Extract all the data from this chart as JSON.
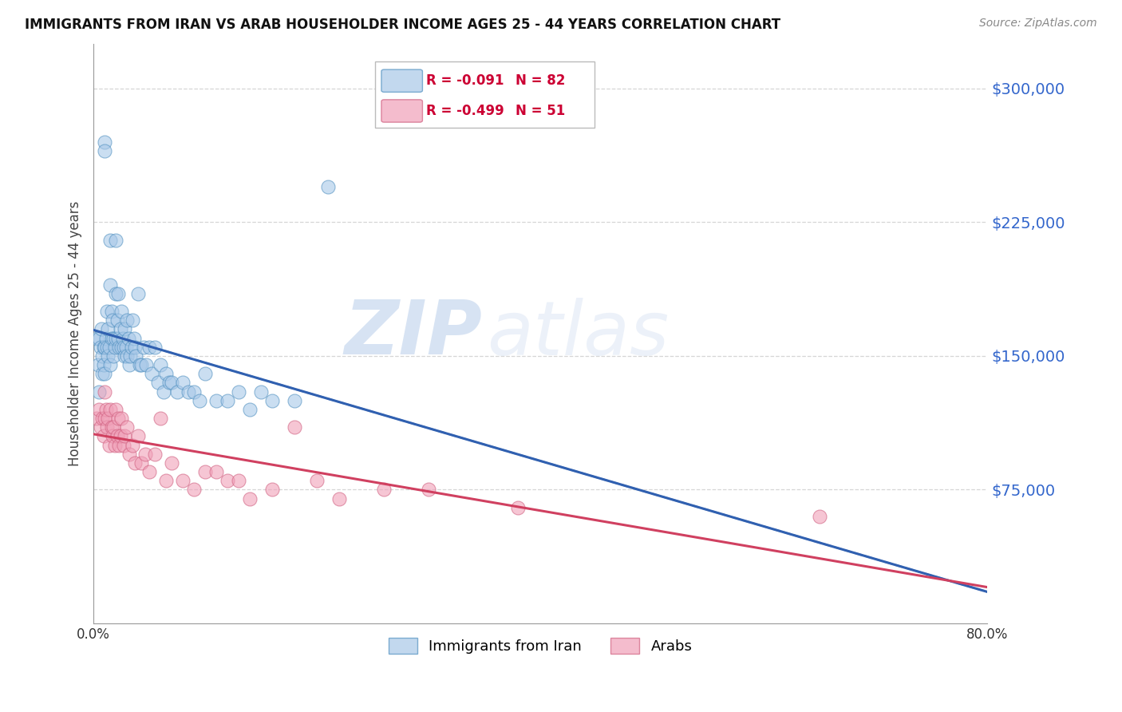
{
  "title": "IMMIGRANTS FROM IRAN VS ARAB HOUSEHOLDER INCOME AGES 25 - 44 YEARS CORRELATION CHART",
  "source": "Source: ZipAtlas.com",
  "ylabel": "Householder Income Ages 25 - 44 years",
  "xlim": [
    0.0,
    0.8
  ],
  "ylim": [
    0,
    325000
  ],
  "ytick_vals": [
    75000,
    150000,
    225000,
    300000
  ],
  "ytick_labels": [
    "$75,000",
    "$150,000",
    "$225,000",
    "$300,000"
  ],
  "xtick_positions": [
    0.0,
    0.1,
    0.2,
    0.3,
    0.4,
    0.5,
    0.6,
    0.7,
    0.8
  ],
  "xtick_labels": [
    "0.0%",
    "",
    "",
    "",
    "",
    "",
    "",
    "",
    "80.0%"
  ],
  "iran_color": "#a8c8e8",
  "iran_color_edge": "#5090c0",
  "arab_color": "#f0a0b8",
  "arab_color_edge": "#d06080",
  "trend_iran_color": "#3060b0",
  "trend_arab_color": "#d04060",
  "legend_iran_R": "R = -0.091",
  "legend_iran_N": "N = 82",
  "legend_arab_R": "R = -0.499",
  "legend_arab_N": "N = 51",
  "watermark_zip": "ZIP",
  "watermark_atlas": "atlas",
  "background_color": "#ffffff",
  "grid_color": "#cccccc",
  "iran_x": [
    0.003,
    0.004,
    0.005,
    0.005,
    0.006,
    0.007,
    0.008,
    0.008,
    0.009,
    0.009,
    0.01,
    0.01,
    0.01,
    0.01,
    0.011,
    0.012,
    0.012,
    0.013,
    0.013,
    0.014,
    0.015,
    0.015,
    0.015,
    0.016,
    0.016,
    0.017,
    0.018,
    0.018,
    0.019,
    0.02,
    0.02,
    0.02,
    0.021,
    0.022,
    0.022,
    0.023,
    0.024,
    0.025,
    0.025,
    0.026,
    0.027,
    0.028,
    0.028,
    0.029,
    0.03,
    0.03,
    0.031,
    0.032,
    0.033,
    0.034,
    0.035,
    0.036,
    0.037,
    0.038,
    0.04,
    0.041,
    0.043,
    0.045,
    0.047,
    0.05,
    0.052,
    0.055,
    0.058,
    0.06,
    0.063,
    0.065,
    0.068,
    0.07,
    0.075,
    0.08,
    0.085,
    0.09,
    0.095,
    0.1,
    0.11,
    0.12,
    0.13,
    0.14,
    0.15,
    0.16,
    0.18,
    0.21
  ],
  "iran_y": [
    160000,
    145000,
    160000,
    130000,
    155000,
    165000,
    150000,
    140000,
    155000,
    145000,
    270000,
    265000,
    155000,
    140000,
    160000,
    175000,
    155000,
    165000,
    150000,
    155000,
    215000,
    190000,
    145000,
    175000,
    160000,
    170000,
    160000,
    150000,
    155000,
    215000,
    185000,
    160000,
    170000,
    185000,
    160000,
    155000,
    165000,
    175000,
    155000,
    160000,
    155000,
    165000,
    150000,
    155000,
    170000,
    150000,
    160000,
    145000,
    150000,
    155000,
    170000,
    160000,
    155000,
    150000,
    185000,
    145000,
    145000,
    155000,
    145000,
    155000,
    140000,
    155000,
    135000,
    145000,
    130000,
    140000,
    135000,
    135000,
    130000,
    135000,
    130000,
    130000,
    125000,
    140000,
    125000,
    125000,
    130000,
    120000,
    130000,
    125000,
    125000,
    245000
  ],
  "arab_x": [
    0.003,
    0.005,
    0.006,
    0.008,
    0.009,
    0.01,
    0.01,
    0.011,
    0.012,
    0.013,
    0.014,
    0.015,
    0.016,
    0.017,
    0.018,
    0.019,
    0.02,
    0.021,
    0.022,
    0.023,
    0.024,
    0.025,
    0.027,
    0.028,
    0.03,
    0.032,
    0.035,
    0.037,
    0.04,
    0.043,
    0.046,
    0.05,
    0.055,
    0.06,
    0.065,
    0.07,
    0.08,
    0.09,
    0.1,
    0.11,
    0.12,
    0.13,
    0.14,
    0.16,
    0.18,
    0.2,
    0.22,
    0.26,
    0.3,
    0.38,
    0.65
  ],
  "arab_y": [
    115000,
    120000,
    110000,
    115000,
    105000,
    130000,
    115000,
    120000,
    110000,
    115000,
    100000,
    120000,
    110000,
    105000,
    110000,
    100000,
    120000,
    105000,
    115000,
    100000,
    105000,
    115000,
    100000,
    105000,
    110000,
    95000,
    100000,
    90000,
    105000,
    90000,
    95000,
    85000,
    95000,
    115000,
    80000,
    90000,
    80000,
    75000,
    85000,
    85000,
    80000,
    80000,
    70000,
    75000,
    110000,
    80000,
    70000,
    75000,
    75000,
    65000,
    60000
  ]
}
